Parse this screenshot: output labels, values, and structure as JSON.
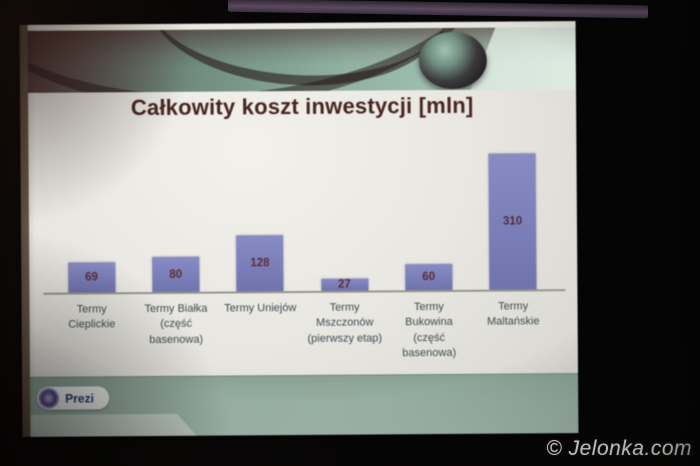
{
  "slide": {
    "title": "Całkowity koszt inwestycji [mln]"
  },
  "chart_data": {
    "type": "bar",
    "title": "Całkowity koszt inwestycji [mln]",
    "categories": [
      "Termy\nCieplickie",
      "Termy Białka\n(część\nbasenowa)",
      "Termy Uniejów",
      "Termy\nMszczonów\n(pierwszy etap)",
      "Termy\nBukowina\n(część\nbasenowa)",
      "Termy\nMaltańskie"
    ],
    "values": [
      69,
      80,
      128,
      27,
      60,
      310
    ],
    "value_labels": [
      "69",
      "80",
      "128",
      "27",
      "60",
      "310"
    ],
    "xlabel": "",
    "ylabel": "",
    "ylim": [
      0,
      330
    ],
    "grid": false,
    "legend": "none",
    "bar_color": "#7a7fbe",
    "value_label_color": "#5e2a33",
    "category_label_color": "#3a4e4e"
  },
  "footer": {
    "prezi_label": "Prezi"
  },
  "watermark": {
    "text": "© Jelonka.com"
  }
}
